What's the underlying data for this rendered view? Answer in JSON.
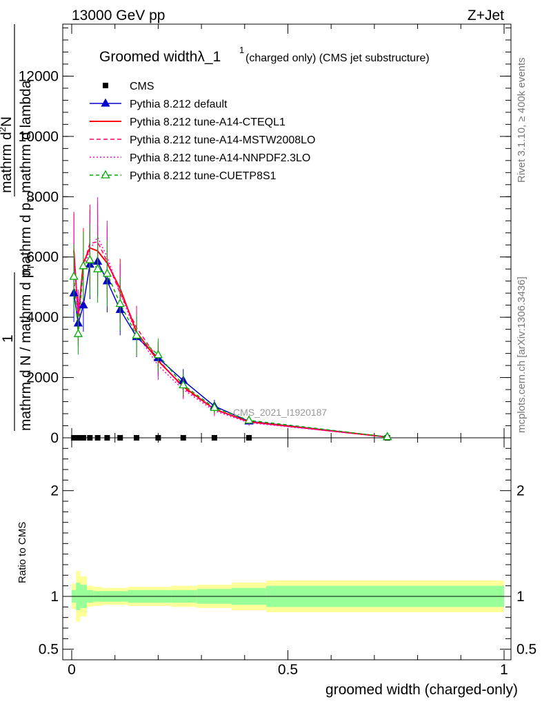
{
  "header": {
    "energy": "13000 GeV pp",
    "process": "Z+Jet"
  },
  "side_text": {
    "rivet": "Rivet 3.1.10, ≥ 400k events",
    "mcplots": "mcplots.cern.ch [arXiv:1306.3436]"
  },
  "title": {
    "main": "Groomed widthλ_1",
    "sup": "1",
    "suffix": " (charged only) (CMS jet substructure)"
  },
  "watermark": "CMS_2021_I1920187",
  "y_axis": {
    "label_top_line1": "mathrm d",
    "label_top_line1_sup": "2",
    "label_top_line1_tail": "N",
    "label_top_line2": "mathrm d p",
    "label_top_line2_sub": "T",
    "label_top_line2_tail": " mathrm d lambda",
    "label_one": "1",
    "label_bottom": "mathrm d N / mathrm d p",
    "label_bottom_sub": "T"
  },
  "ratio_axis": {
    "label": "Ratio to CMS"
  },
  "x_axis": {
    "label": "groomed width (charged-only)"
  },
  "colors": {
    "cms": "#000000",
    "default": "#0000cc",
    "cteql1": "#ff0000",
    "mstw": "#ff0066",
    "nnpdf": "#ff00cc",
    "cuetp8s1": "#00aa00",
    "band_inner": "#99ff99",
    "band_outer": "#ffff99"
  },
  "chart_data": {
    "type": "line",
    "xlim": [
      0,
      1
    ],
    "ylim": [
      0,
      14000
    ],
    "ratio_ylim": [
      0.4,
      2.5
    ],
    "x_ticks": [
      0,
      0.5,
      1
    ],
    "x_tick_labels": [
      "0",
      "0.5",
      "1"
    ],
    "y_ticks": [
      0,
      2000,
      4000,
      6000,
      8000,
      10000,
      12000
    ],
    "y_tick_labels": [
      "0",
      "2000",
      "4000",
      "6000",
      "8000",
      "10000",
      "12000"
    ],
    "ratio_ticks": [
      0.5,
      1,
      2
    ],
    "ratio_tick_labels": [
      "0.5",
      "1",
      "2"
    ],
    "x": [
      0.005,
      0.015,
      0.027,
      0.042,
      0.06,
      0.082,
      0.112,
      0.15,
      0.2,
      0.258,
      0.33,
      0.41,
      0.73
    ],
    "series": [
      {
        "name": "CMS",
        "key": "cms",
        "style": "square",
        "values": [
          0,
          0,
          0,
          0,
          0,
          0,
          0,
          0,
          0,
          0,
          0,
          0,
          0
        ]
      },
      {
        "name": "Pythia 8.212 default",
        "key": "default",
        "style": "solid-tri",
        "values": [
          4800,
          3800,
          4400,
          5750,
          5850,
          5200,
          4250,
          3350,
          2650,
          1900,
          1050,
          550,
          30
        ]
      },
      {
        "name": "Pythia 8.212 tune-A14-CTEQL1",
        "key": "cteql1",
        "style": "solid",
        "values": [
          6200,
          4050,
          5800,
          6300,
          6200,
          5800,
          4950,
          3500,
          2550,
          1700,
          950,
          530,
          25
        ]
      },
      {
        "name": "Pythia 8.212 tune-A14-MSTW2008LO",
        "key": "mstw",
        "style": "dashed",
        "values": [
          6250,
          3900,
          5700,
          6450,
          6500,
          5850,
          4800,
          3650,
          2600,
          1650,
          950,
          520,
          25
        ]
      },
      {
        "name": "Pythia 8.212 tune-A14-NNPDF2.3LO",
        "key": "nnpdf",
        "style": "dotted",
        "values": [
          6100,
          4100,
          5600,
          6250,
          6650,
          6000,
          4800,
          3450,
          2400,
          1600,
          900,
          500,
          25
        ]
      },
      {
        "name": "Pythia 8.212 tune-CUETP8S1",
        "key": "cuetp8s1",
        "style": "dashed-otri",
        "values": [
          5350,
          3450,
          5700,
          5900,
          5600,
          5450,
          4450,
          3400,
          2750,
          1750,
          1000,
          580,
          30
        ]
      }
    ],
    "ratio_bands": {
      "edges": [
        0.0,
        0.01,
        0.02,
        0.035,
        0.05,
        0.07,
        0.095,
        0.13,
        0.17,
        0.23,
        0.29,
        0.37,
        0.45,
        1.0
      ],
      "inner": [
        0.06,
        0.13,
        0.11,
        0.06,
        0.05,
        0.05,
        0.05,
        0.06,
        0.06,
        0.06,
        0.07,
        0.08,
        0.1
      ],
      "outer": [
        0.12,
        0.24,
        0.19,
        0.1,
        0.09,
        0.08,
        0.08,
        0.09,
        0.09,
        0.1,
        0.11,
        0.13,
        0.15
      ]
    }
  }
}
